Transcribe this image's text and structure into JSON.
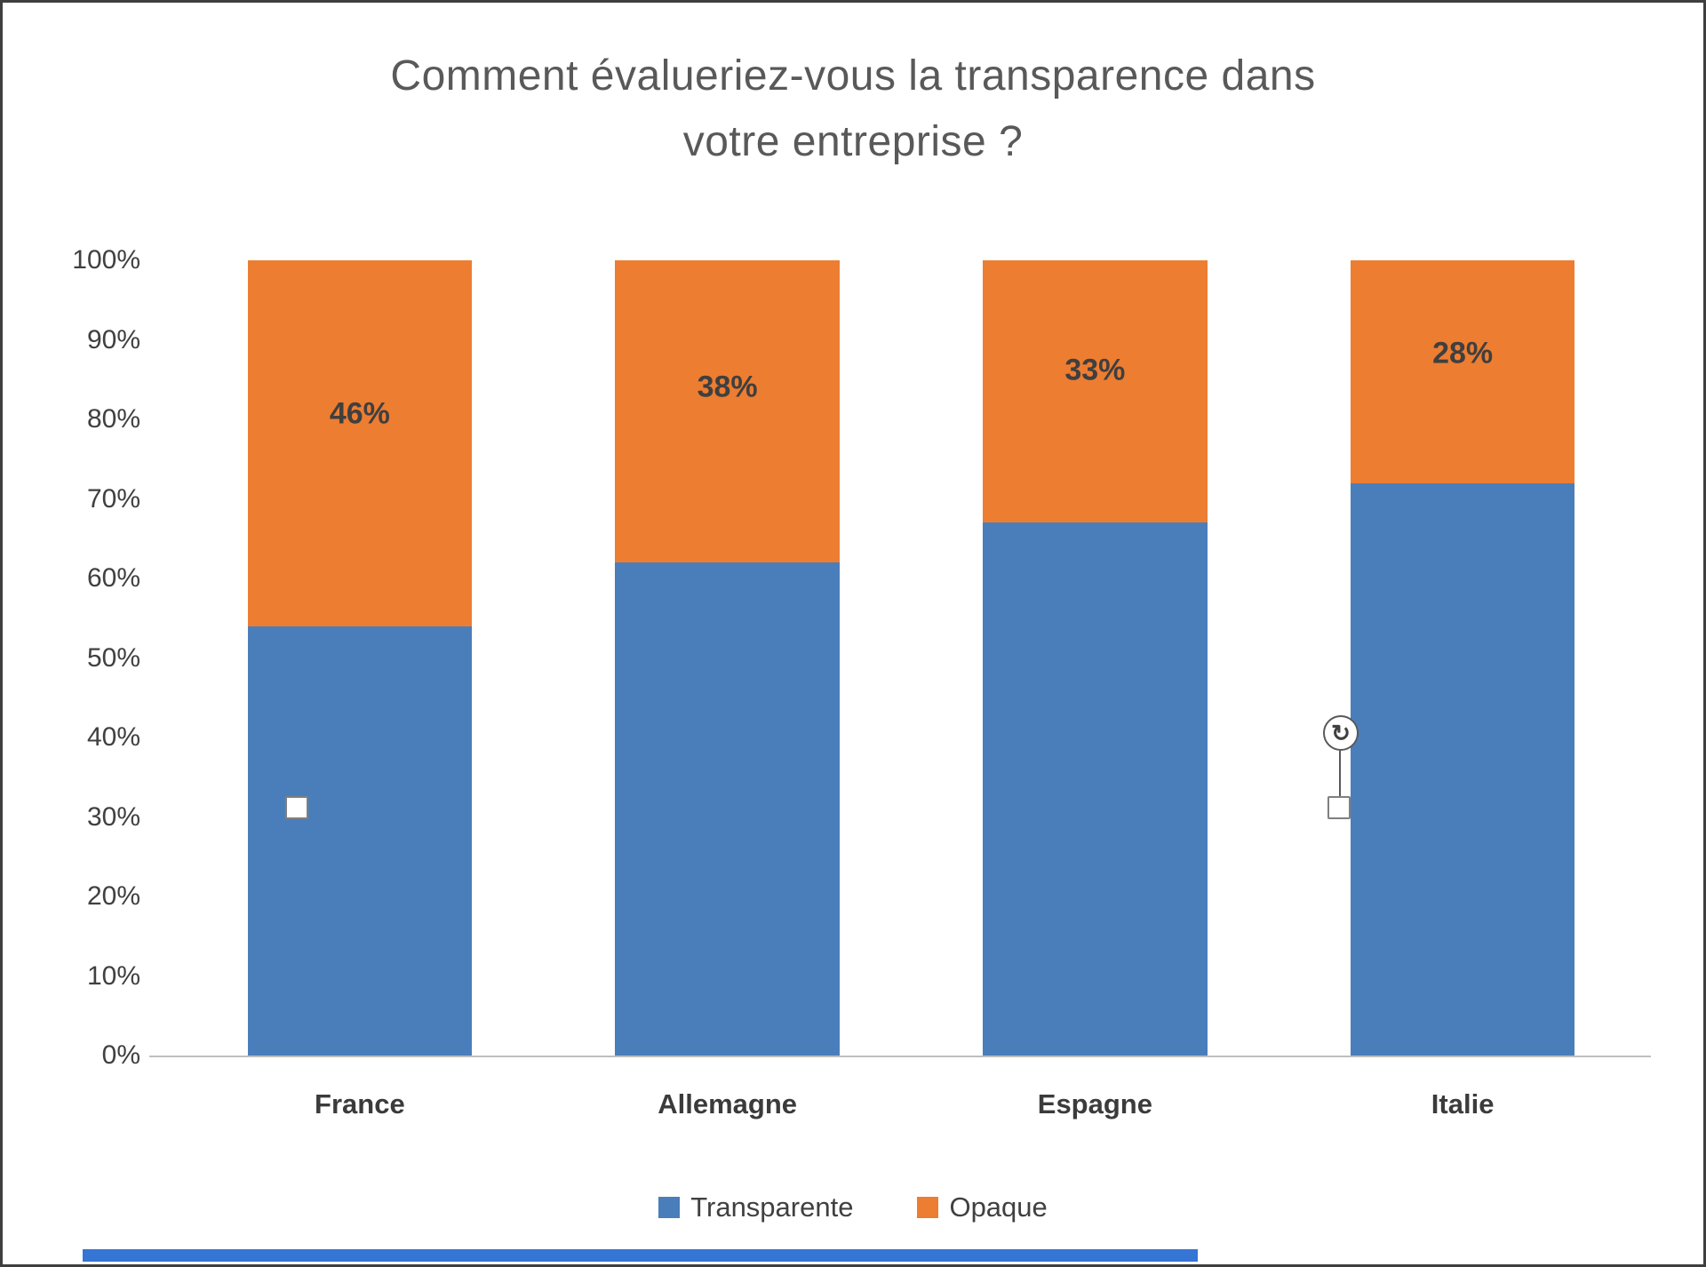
{
  "chart_data": {
    "type": "bar",
    "subtype": "stacked-100",
    "title": "Comment évalueriez-vous la transparence dans votre entreprise ?",
    "title_lines": [
      "Comment évalueriez-vous la transparence dans",
      "votre entreprise ?"
    ],
    "categories": [
      "France",
      "Allemagne",
      "Espagne",
      "Italie"
    ],
    "series": [
      {
        "name": "Transparente",
        "color": "#4A7EBB",
        "values": [
          54,
          62,
          67,
          72
        ]
      },
      {
        "name": "Opaque",
        "color": "#ED7D31",
        "values": [
          46,
          38,
          33,
          28
        ],
        "labels": [
          "46%",
          "38%",
          "33%",
          "28%"
        ]
      }
    ],
    "y_ticks": [
      "100%",
      "90%",
      "80%",
      "70%",
      "60%",
      "50%",
      "40%",
      "30%",
      "20%",
      "10%",
      "0%"
    ],
    "ylim": [
      0,
      100
    ],
    "grid": false,
    "legend_position": "bottom"
  },
  "legend": {
    "items": [
      {
        "label": "Transparente",
        "color": "#4A7EBB"
      },
      {
        "label": "Opaque",
        "color": "#ED7D31"
      }
    ]
  },
  "decorations": {
    "rotate_handle_glyph": "↻"
  },
  "colors": {
    "title_text": "#595959",
    "axis_text": "#404040",
    "data_label_text": "#3f3f3f",
    "axis_line": "#bfbfbf",
    "frame_border": "#3f3f3f",
    "bottom_strip": "#3575d3"
  }
}
